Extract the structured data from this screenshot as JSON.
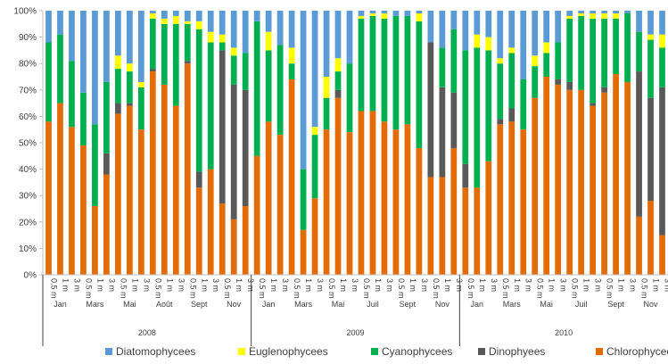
{
  "chart_data": {
    "type": "bar",
    "stacked": true,
    "percent": true,
    "ylim": [
      0,
      100
    ],
    "yticks": [
      "0%",
      "10%",
      "20%",
      "30%",
      "40%",
      "50%",
      "60%",
      "70%",
      "80%",
      "90%",
      "100%"
    ],
    "grid": false,
    "legend_position": "bottom",
    "depths": [
      "0.5 m",
      "1 m",
      "3 m"
    ],
    "colors": {
      "Diatomophycees": "#5b9bd5",
      "Euglenophycees": "#ffff00",
      "Cyanophycees": "#00b050",
      "Dinophyees": "#595959",
      "Chlorophycees": "#e36c09"
    },
    "legend": [
      {
        "name": "Diatomophycees",
        "color": "#5b9bd5"
      },
      {
        "name": "Euglenophycees",
        "color": "#ffff00"
      },
      {
        "name": "Cyanophycees",
        "color": "#00b050"
      },
      {
        "name": "Dinophyees",
        "color": "#595959"
      },
      {
        "name": "Chlorophycees",
        "color": "#e36c09"
      }
    ],
    "stack_order": [
      "Chlorophycees",
      "Dinophyees",
      "Cyanophycees",
      "Euglenophycees",
      "Diatomophycees"
    ],
    "groups": [
      {
        "year": "2008",
        "months": [
          "Jan",
          "Mars",
          "Mai",
          "Août",
          "Sept",
          "Nov"
        ]
      },
      {
        "year": "2009",
        "months": [
          "Jan",
          "Mars",
          "Mai",
          "Juil",
          "Sept",
          "Nov"
        ]
      },
      {
        "year": "2010",
        "months": [
          "Jan",
          "Mars",
          "Mai",
          "Juil",
          "Sept",
          "Nov"
        ]
      }
    ],
    "bars": [
      {
        "Chlorophycees": 58,
        "Dinophyees": 0,
        "Cyanophycees": 30,
        "Euglenophycees": 0,
        "Diatomophycees": 12
      },
      {
        "Chlorophycees": 65,
        "Dinophyees": 0,
        "Cyanophycees": 26,
        "Euglenophycees": 0,
        "Diatomophycees": 9
      },
      {
        "Chlorophycees": 56,
        "Dinophyees": 0,
        "Cyanophycees": 25,
        "Euglenophycees": 0,
        "Diatomophycees": 19
      },
      {
        "Chlorophycees": 49,
        "Dinophyees": 0,
        "Cyanophycees": 20,
        "Euglenophycees": 0,
        "Diatomophycees": 31
      },
      {
        "Chlorophycees": 26,
        "Dinophyees": 0,
        "Cyanophycees": 31,
        "Euglenophycees": 0,
        "Diatomophycees": 43
      },
      {
        "Chlorophycees": 38,
        "Dinophyees": 8,
        "Cyanophycees": 27,
        "Euglenophycees": 0,
        "Diatomophycees": 27
      },
      {
        "Chlorophycees": 61,
        "Dinophyees": 4,
        "Cyanophycees": 13,
        "Euglenophycees": 5,
        "Diatomophycees": 17
      },
      {
        "Chlorophycees": 64,
        "Dinophyees": 1,
        "Cyanophycees": 12,
        "Euglenophycees": 3,
        "Diatomophycees": 20
      },
      {
        "Chlorophycees": 55,
        "Dinophyees": 0,
        "Cyanophycees": 16,
        "Euglenophycees": 2,
        "Diatomophycees": 27
      },
      {
        "Chlorophycees": 77,
        "Dinophyees": 1,
        "Cyanophycees": 19,
        "Euglenophycees": 2,
        "Diatomophycees": 1
      },
      {
        "Chlorophycees": 72,
        "Dinophyees": 0,
        "Cyanophycees": 23,
        "Euglenophycees": 2,
        "Diatomophycees": 3
      },
      {
        "Chlorophycees": 64,
        "Dinophyees": 0,
        "Cyanophycees": 31,
        "Euglenophycees": 3,
        "Diatomophycees": 2
      },
      {
        "Chlorophycees": 80,
        "Dinophyees": 1,
        "Cyanophycees": 14,
        "Euglenophycees": 1,
        "Diatomophycees": 4
      },
      {
        "Chlorophycees": 33,
        "Dinophyees": 6,
        "Cyanophycees": 54,
        "Euglenophycees": 3,
        "Diatomophycees": 4
      },
      {
        "Chlorophycees": 40,
        "Dinophyees": 0,
        "Cyanophycees": 48,
        "Euglenophycees": 4,
        "Diatomophycees": 8
      },
      {
        "Chlorophycees": 27,
        "Dinophyees": 58,
        "Cyanophycees": 3,
        "Euglenophycees": 3,
        "Diatomophycees": 9
      },
      {
        "Chlorophycees": 21,
        "Dinophyees": 51,
        "Cyanophycees": 11,
        "Euglenophycees": 3,
        "Diatomophycees": 14
      },
      {
        "Chlorophycees": 26,
        "Dinophyees": 44,
        "Cyanophycees": 14,
        "Euglenophycees": 0,
        "Diatomophycees": 16
      },
      {
        "Chlorophycees": 45,
        "Dinophyees": 0,
        "Cyanophycees": 51,
        "Euglenophycees": 0,
        "Diatomophycees": 4
      },
      {
        "Chlorophycees": 58,
        "Dinophyees": 0,
        "Cyanophycees": 27,
        "Euglenophycees": 7,
        "Diatomophycees": 8
      },
      {
        "Chlorophycees": 53,
        "Dinophyees": 0,
        "Cyanophycees": 34,
        "Euglenophycees": 0,
        "Diatomophycees": 13
      },
      {
        "Chlorophycees": 74,
        "Dinophyees": 0,
        "Cyanophycees": 6,
        "Euglenophycees": 6,
        "Diatomophycees": 14
      },
      {
        "Chlorophycees": 17,
        "Dinophyees": 0,
        "Cyanophycees": 23,
        "Euglenophycees": 0,
        "Diatomophycees": 60
      },
      {
        "Chlorophycees": 29,
        "Dinophyees": 0,
        "Cyanophycees": 24,
        "Euglenophycees": 3,
        "Diatomophycees": 44
      },
      {
        "Chlorophycees": 55,
        "Dinophyees": 0,
        "Cyanophycees": 12,
        "Euglenophycees": 8,
        "Diatomophycees": 25
      },
      {
        "Chlorophycees": 67,
        "Dinophyees": 3,
        "Cyanophycees": 7,
        "Euglenophycees": 5,
        "Diatomophycees": 18
      },
      {
        "Chlorophycees": 54,
        "Dinophyees": 0,
        "Cyanophycees": 26,
        "Euglenophycees": 0,
        "Diatomophycees": 20
      },
      {
        "Chlorophycees": 62,
        "Dinophyees": 0,
        "Cyanophycees": 35,
        "Euglenophycees": 1,
        "Diatomophycees": 2
      },
      {
        "Chlorophycees": 62,
        "Dinophyees": 0,
        "Cyanophycees": 36,
        "Euglenophycees": 1,
        "Diatomophycees": 1
      },
      {
        "Chlorophycees": 58,
        "Dinophyees": 0,
        "Cyanophycees": 39,
        "Euglenophycees": 2,
        "Diatomophycees": 1
      },
      {
        "Chlorophycees": 55,
        "Dinophyees": 0,
        "Cyanophycees": 43,
        "Euglenophycees": 0,
        "Diatomophycees": 2
      },
      {
        "Chlorophycees": 57,
        "Dinophyees": 0,
        "Cyanophycees": 41,
        "Euglenophycees": 0,
        "Diatomophycees": 2
      },
      {
        "Chlorophycees": 48,
        "Dinophyees": 0,
        "Cyanophycees": 48,
        "Euglenophycees": 3,
        "Diatomophycees": 1
      },
      {
        "Chlorophycees": 37,
        "Dinophyees": 51,
        "Cyanophycees": 0,
        "Euglenophycees": 0,
        "Diatomophycees": 12
      },
      {
        "Chlorophycees": 37,
        "Dinophyees": 34,
        "Cyanophycees": 15,
        "Euglenophycees": 0,
        "Diatomophycees": 14
      },
      {
        "Chlorophycees": 48,
        "Dinophyees": 21,
        "Cyanophycees": 24,
        "Euglenophycees": 0,
        "Diatomophycees": 7
      },
      {
        "Chlorophycees": 33,
        "Dinophyees": 9,
        "Cyanophycees": 43,
        "Euglenophycees": 0,
        "Diatomophycees": 15
      },
      {
        "Chlorophycees": 33,
        "Dinophyees": 0,
        "Cyanophycees": 53,
        "Euglenophycees": 5,
        "Diatomophycees": 9
      },
      {
        "Chlorophycees": 43,
        "Dinophyees": 0,
        "Cyanophycees": 42,
        "Euglenophycees": 5,
        "Diatomophycees": 10
      },
      {
        "Chlorophycees": 57,
        "Dinophyees": 2,
        "Cyanophycees": 21,
        "Euglenophycees": 2,
        "Diatomophycees": 18
      },
      {
        "Chlorophycees": 58,
        "Dinophyees": 5,
        "Cyanophycees": 21,
        "Euglenophycees": 2,
        "Diatomophycees": 14
      },
      {
        "Chlorophycees": 55,
        "Dinophyees": 0,
        "Cyanophycees": 19,
        "Euglenophycees": 0,
        "Diatomophycees": 26
      },
      {
        "Chlorophycees": 67,
        "Dinophyees": 0,
        "Cyanophycees": 12,
        "Euglenophycees": 4,
        "Diatomophycees": 17
      },
      {
        "Chlorophycees": 75,
        "Dinophyees": 0,
        "Cyanophycees": 9,
        "Euglenophycees": 4,
        "Diatomophycees": 12
      },
      {
        "Chlorophycees": 72,
        "Dinophyees": 2,
        "Cyanophycees": 14,
        "Euglenophycees": 0,
        "Diatomophycees": 12
      },
      {
        "Chlorophycees": 70,
        "Dinophyees": 3,
        "Cyanophycees": 24,
        "Euglenophycees": 1,
        "Diatomophycees": 2
      },
      {
        "Chlorophycees": 70,
        "Dinophyees": 0,
        "Cyanophycees": 28,
        "Euglenophycees": 1,
        "Diatomophycees": 1
      },
      {
        "Chlorophycees": 64,
        "Dinophyees": 1,
        "Cyanophycees": 32,
        "Euglenophycees": 2,
        "Diatomophycees": 1
      },
      {
        "Chlorophycees": 69,
        "Dinophyees": 2,
        "Cyanophycees": 26,
        "Euglenophycees": 2,
        "Diatomophycees": 1
      },
      {
        "Chlorophycees": 76,
        "Dinophyees": 0,
        "Cyanophycees": 21,
        "Euglenophycees": 2,
        "Diatomophycees": 1
      },
      {
        "Chlorophycees": 73,
        "Dinophyees": 0,
        "Cyanophycees": 26,
        "Euglenophycees": 0,
        "Diatomophycees": 1
      },
      {
        "Chlorophycees": 22,
        "Dinophyees": 55,
        "Cyanophycees": 15,
        "Euglenophycees": 0,
        "Diatomophycees": 8
      },
      {
        "Chlorophycees": 28,
        "Dinophyees": 39,
        "Cyanophycees": 22,
        "Euglenophycees": 2,
        "Diatomophycees": 9
      },
      {
        "Chlorophycees": 15,
        "Dinophyees": 56,
        "Cyanophycees": 15,
        "Euglenophycees": 5,
        "Diatomophycees": 9
      }
    ]
  }
}
